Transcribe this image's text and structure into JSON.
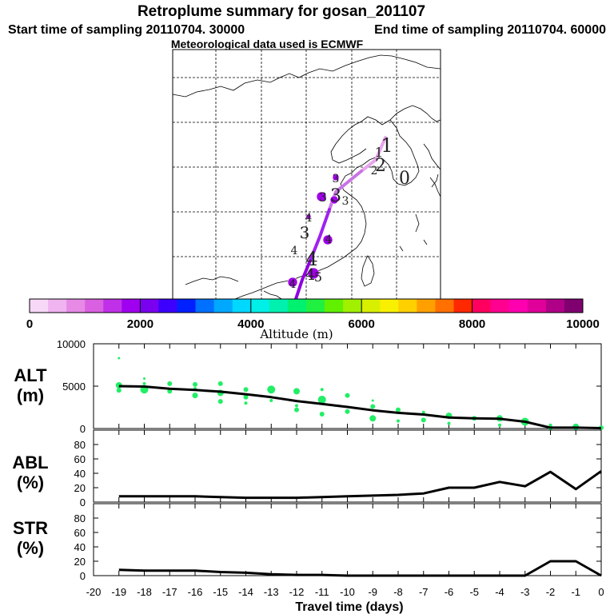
{
  "title": "Retroplume summary for gosan_201107",
  "start_label": "Start time of sampling 20110704. 30000",
  "end_label": "End time of sampling 20110704. 60000",
  "met_label": "Meteorological data used is ECMWF",
  "colorbar": {
    "label": "Altitude (m)",
    "ticks": [
      "0",
      "2000",
      "4000",
      "6000",
      "8000",
      "10000"
    ],
    "colors": [
      "#f7d8f7",
      "#f0b4f0",
      "#e68ae6",
      "#d960e0",
      "#c030e8",
      "#a000f0",
      "#7a00f0",
      "#3c00ff",
      "#0020ff",
      "#0070ff",
      "#00a8ff",
      "#00d8ff",
      "#00f0e8",
      "#00f0b0",
      "#00f070",
      "#20f040",
      "#60f000",
      "#a0f000",
      "#d8f000",
      "#f8f000",
      "#ffd000",
      "#ffa000",
      "#ff7000",
      "#ff2800",
      "#ff0060",
      "#ff0090",
      "#ff00b0",
      "#e0009a",
      "#b00088",
      "#800070"
    ]
  },
  "map": {
    "markers": [
      {
        "text": "1",
        "size": 24
      },
      {
        "text": "1",
        "size": 16
      },
      {
        "text": "2",
        "size": 22
      },
      {
        "text": "2",
        "size": 14
      },
      {
        "text": "0",
        "size": 22
      },
      {
        "text": "3",
        "size": 14
      },
      {
        "text": "3",
        "size": 22
      },
      {
        "text": "3",
        "size": 16
      },
      {
        "text": "3",
        "size": 14
      },
      {
        "text": "4",
        "size": 14
      },
      {
        "text": "3",
        "size": 20
      },
      {
        "text": "4",
        "size": 14
      },
      {
        "text": "4",
        "size": 14
      },
      {
        "text": "4",
        "size": 24
      },
      {
        "text": "4",
        "size": 20
      },
      {
        "text": "5",
        "size": 16
      },
      {
        "text": "4",
        "size": 14
      }
    ]
  },
  "chart_data": {
    "type": "line",
    "x_label": "Travel time (days)",
    "x_ticks": [
      "-20",
      "-19",
      "-18",
      "-17",
      "-16",
      "-15",
      "-14",
      "-13",
      "-12",
      "-11",
      "-10",
      "-9",
      "-8",
      "-7",
      "-6",
      "-5",
      "-4",
      "-3",
      "-2",
      "-1",
      "0"
    ],
    "x_range": [
      -20,
      0
    ],
    "panels": [
      {
        "name": "ALT",
        "unit": "(m)",
        "ylim": [
          0,
          10000
        ],
        "y_ticks": [
          "10000",
          "5000",
          "0"
        ],
        "x": [
          -19,
          -18,
          -17,
          -16,
          -15,
          -14,
          -13,
          -12,
          -11,
          -10,
          -9,
          -8,
          -7,
          -6,
          -5,
          -4,
          -3,
          -2,
          -1,
          0
        ],
        "values": [
          5000,
          4950,
          4700,
          4550,
          4350,
          4050,
          3700,
          3250,
          2900,
          2550,
          2150,
          1850,
          1650,
          1300,
          1200,
          1150,
          800,
          100,
          100,
          50
        ],
        "scatter": [
          {
            "x": -19,
            "y": 8300,
            "r": 1.5
          },
          {
            "x": -19,
            "y": 5100,
            "r": 4
          },
          {
            "x": -19,
            "y": 4500,
            "r": 3
          },
          {
            "x": -18,
            "y": 5900,
            "r": 1.5
          },
          {
            "x": -18,
            "y": 4600,
            "r": 5
          },
          {
            "x": -18,
            "y": 5300,
            "r": 2
          },
          {
            "x": -17,
            "y": 5300,
            "r": 3
          },
          {
            "x": -17,
            "y": 4400,
            "r": 3
          },
          {
            "x": -16,
            "y": 5200,
            "r": 3
          },
          {
            "x": -16,
            "y": 3900,
            "r": 3.5
          },
          {
            "x": -16,
            "y": 4700,
            "r": 2
          },
          {
            "x": -15,
            "y": 5300,
            "r": 3
          },
          {
            "x": -15,
            "y": 4200,
            "r": 4
          },
          {
            "x": -15,
            "y": 3200,
            "r": 3
          },
          {
            "x": -14,
            "y": 4600,
            "r": 3
          },
          {
            "x": -14,
            "y": 3700,
            "r": 3
          },
          {
            "x": -14,
            "y": 3000,
            "r": 2
          },
          {
            "x": -13,
            "y": 4600,
            "r": 5
          },
          {
            "x": -13,
            "y": 3300,
            "r": 2
          },
          {
            "x": -12,
            "y": 4400,
            "r": 4
          },
          {
            "x": -12,
            "y": 2700,
            "r": 2
          },
          {
            "x": -12,
            "y": 2200,
            "r": 3
          },
          {
            "x": -11,
            "y": 4600,
            "r": 2
          },
          {
            "x": -11,
            "y": 3400,
            "r": 5
          },
          {
            "x": -11,
            "y": 1700,
            "r": 3
          },
          {
            "x": -10,
            "y": 3900,
            "r": 3
          },
          {
            "x": -10,
            "y": 2000,
            "r": 3
          },
          {
            "x": -9,
            "y": 3300,
            "r": 1.5
          },
          {
            "x": -9,
            "y": 2600,
            "r": 3
          },
          {
            "x": -9,
            "y": 1200,
            "r": 4
          },
          {
            "x": -8,
            "y": 2200,
            "r": 3
          },
          {
            "x": -8,
            "y": 900,
            "r": 2
          },
          {
            "x": -7,
            "y": 1900,
            "r": 2
          },
          {
            "x": -7,
            "y": 1000,
            "r": 3
          },
          {
            "x": -6,
            "y": 1500,
            "r": 4
          },
          {
            "x": -6,
            "y": 600,
            "r": 2
          },
          {
            "x": -5,
            "y": 1200,
            "r": 3
          },
          {
            "x": -4,
            "y": 1200,
            "r": 4
          },
          {
            "x": -4,
            "y": 400,
            "r": 2
          },
          {
            "x": -3,
            "y": 800,
            "r": 5
          },
          {
            "x": -3,
            "y": 1000,
            "r": 2
          },
          {
            "x": -2,
            "y": 400,
            "r": 2
          },
          {
            "x": -2,
            "y": 100,
            "r": 3
          },
          {
            "x": -1,
            "y": 300,
            "r": 3
          },
          {
            "x": -1,
            "y": 200,
            "r": 4
          },
          {
            "x": 0,
            "y": 100,
            "r": 3
          }
        ]
      },
      {
        "name": "ABL",
        "unit": "(%)",
        "ylim": [
          0,
          100
        ],
        "y_ticks": [
          "80",
          "60",
          "40",
          "20",
          "0"
        ],
        "x": [
          -19,
          -18,
          -17,
          -16,
          -15,
          -14,
          -13,
          -12,
          -11,
          -10,
          -9,
          -8,
          -7,
          -6,
          -5,
          -4,
          -3,
          -2,
          -1,
          0
        ],
        "values": [
          8,
          8,
          8,
          8,
          7,
          6,
          6,
          6,
          7,
          8,
          9,
          10,
          12,
          20,
          20,
          28,
          22,
          42,
          18,
          43
        ]
      },
      {
        "name": "STR",
        "unit": "(%)",
        "ylim": [
          0,
          100
        ],
        "y_ticks": [
          "80",
          "60",
          "40",
          "20",
          "0"
        ],
        "x": [
          -19,
          -18,
          -17,
          -16,
          -15,
          -14,
          -13,
          -12,
          -11,
          -10,
          -9,
          -8,
          -7,
          -6,
          -5,
          -4,
          -3,
          -2,
          -1,
          0
        ],
        "values": [
          8,
          7,
          7,
          7,
          5,
          4,
          2,
          1,
          1,
          0,
          0,
          0,
          0,
          0,
          0,
          0,
          0,
          20,
          20,
          0
        ]
      }
    ]
  }
}
